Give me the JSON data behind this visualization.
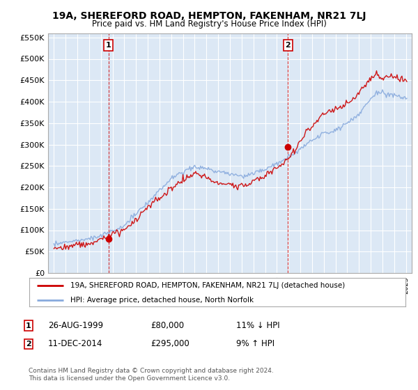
{
  "title": "19A, SHEREFORD ROAD, HEMPTON, FAKENHAM, NR21 7LJ",
  "subtitle": "Price paid vs. HM Land Registry's House Price Index (HPI)",
  "legend_label_red": "19A, SHEREFORD ROAD, HEMPTON, FAKENHAM, NR21 7LJ (detached house)",
  "legend_label_blue": "HPI: Average price, detached house, North Norfolk",
  "transaction1_date": "26-AUG-1999",
  "transaction1_price": "£80,000",
  "transaction1_hpi": "11% ↓ HPI",
  "transaction2_date": "11-DEC-2014",
  "transaction2_price": "£295,000",
  "transaction2_hpi": "9% ↑ HPI",
  "footer": "Contains HM Land Registry data © Crown copyright and database right 2024.\nThis data is licensed under the Open Government Licence v3.0.",
  "ylim_min": 0,
  "ylim_max": 560000,
  "year_start": 1995,
  "year_end": 2025,
  "transaction1_year": 1999.65,
  "transaction2_year": 2014.94,
  "transaction1_value": 80000,
  "transaction2_value": 295000,
  "color_red": "#cc0000",
  "color_blue": "#88aadd",
  "background_chart": "#dce8f5",
  "background_fig": "#ffffff",
  "grid_color": "#ffffff"
}
